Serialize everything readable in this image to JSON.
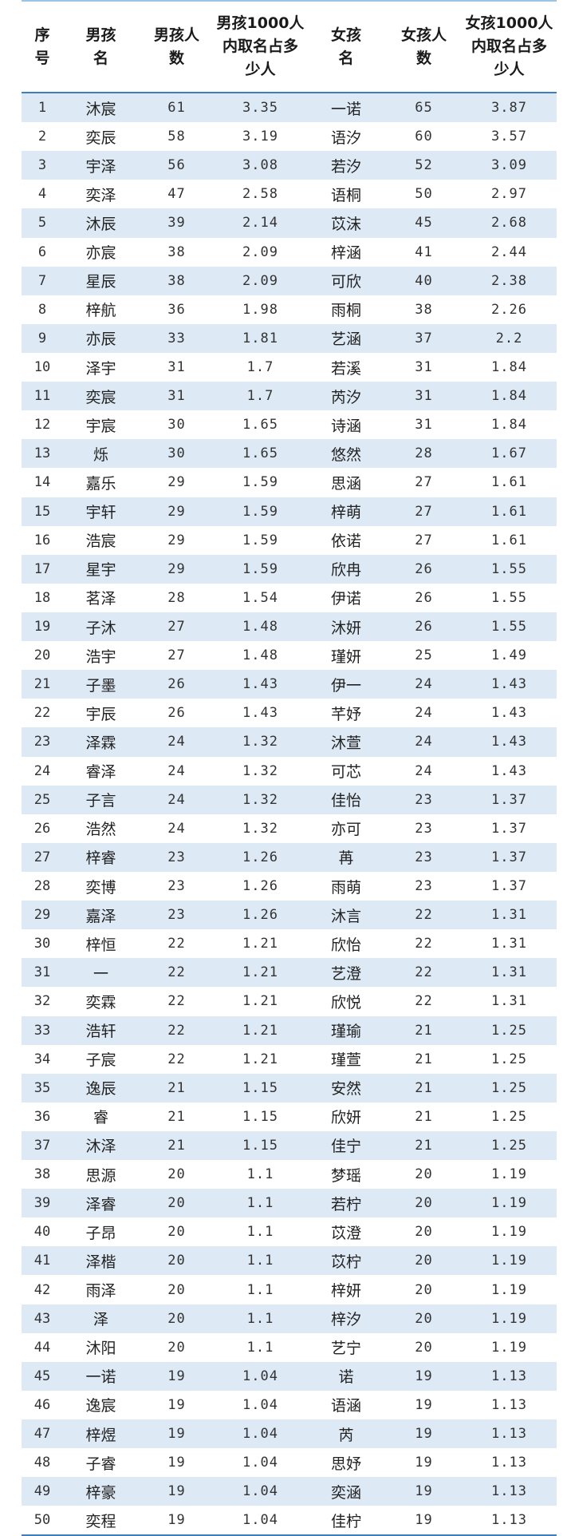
{
  "headers": [
    "序\n号",
    "男孩\n名",
    "男孩人\n数",
    "男孩1000人\n内取名占多\n少人",
    "女孩\n名",
    "女孩人\n数",
    "女孩1000人\n内取名占多\n少人"
  ],
  "rows": [
    [
      "1",
      "沐宸",
      "61",
      "3.35",
      "一诺",
      "65",
      "3.87"
    ],
    [
      "2",
      "奕辰",
      "58",
      "3.19",
      "语汐",
      "60",
      "3.57"
    ],
    [
      "3",
      "宇泽",
      "56",
      "3.08",
      "若汐",
      "52",
      "3.09"
    ],
    [
      "4",
      "奕泽",
      "47",
      "2.58",
      "语桐",
      "50",
      "2.97"
    ],
    [
      "5",
      "沐辰",
      "39",
      "2.14",
      "苡沫",
      "45",
      "2.68"
    ],
    [
      "6",
      "亦宸",
      "38",
      "2.09",
      "梓涵",
      "41",
      "2.44"
    ],
    [
      "7",
      "星辰",
      "38",
      "2.09",
      "可欣",
      "40",
      "2.38"
    ],
    [
      "8",
      "梓航",
      "36",
      "1.98",
      "雨桐",
      "38",
      "2.26"
    ],
    [
      "9",
      "亦辰",
      "33",
      "1.81",
      "艺涵",
      "37",
      "2.2"
    ],
    [
      "10",
      "泽宇",
      "31",
      "1.7",
      "若溪",
      "31",
      "1.84"
    ],
    [
      "11",
      "奕宸",
      "31",
      "1.7",
      "芮汐",
      "31",
      "1.84"
    ],
    [
      "12",
      "宇宸",
      "30",
      "1.65",
      "诗涵",
      "31",
      "1.84"
    ],
    [
      "13",
      "烁",
      "30",
      "1.65",
      "悠然",
      "28",
      "1.67"
    ],
    [
      "14",
      "嘉乐",
      "29",
      "1.59",
      "思涵",
      "27",
      "1.61"
    ],
    [
      "15",
      "宇轩",
      "29",
      "1.59",
      "梓萌",
      "27",
      "1.61"
    ],
    [
      "16",
      "浩宸",
      "29",
      "1.59",
      "依诺",
      "27",
      "1.61"
    ],
    [
      "17",
      "星宇",
      "29",
      "1.59",
      "欣冉",
      "26",
      "1.55"
    ],
    [
      "18",
      "茗泽",
      "28",
      "1.54",
      "伊诺",
      "26",
      "1.55"
    ],
    [
      "19",
      "子沐",
      "27",
      "1.48",
      "沐妍",
      "26",
      "1.55"
    ],
    [
      "20",
      "浩宇",
      "27",
      "1.48",
      "瑾妍",
      "25",
      "1.49"
    ],
    [
      "21",
      "子墨",
      "26",
      "1.43",
      "伊一",
      "24",
      "1.43"
    ],
    [
      "22",
      "宇辰",
      "26",
      "1.43",
      "芊妤",
      "24",
      "1.43"
    ],
    [
      "23",
      "泽霖",
      "24",
      "1.32",
      "沐萱",
      "24",
      "1.43"
    ],
    [
      "24",
      "睿泽",
      "24",
      "1.32",
      "可芯",
      "24",
      "1.43"
    ],
    [
      "25",
      "子言",
      "24",
      "1.32",
      "佳怡",
      "23",
      "1.37"
    ],
    [
      "26",
      "浩然",
      "24",
      "1.32",
      "亦可",
      "23",
      "1.37"
    ],
    [
      "27",
      "梓睿",
      "23",
      "1.26",
      "苒",
      "23",
      "1.37"
    ],
    [
      "28",
      "奕博",
      "23",
      "1.26",
      "雨萌",
      "23",
      "1.37"
    ],
    [
      "29",
      "嘉泽",
      "23",
      "1.26",
      "沐言",
      "22",
      "1.31"
    ],
    [
      "30",
      "梓恒",
      "22",
      "1.21",
      "欣怡",
      "22",
      "1.31"
    ],
    [
      "31",
      "一",
      "22",
      "1.21",
      "艺澄",
      "22",
      "1.31"
    ],
    [
      "32",
      "奕霖",
      "22",
      "1.21",
      "欣悦",
      "22",
      "1.31"
    ],
    [
      "33",
      "浩轩",
      "22",
      "1.21",
      "瑾瑜",
      "21",
      "1.25"
    ],
    [
      "34",
      "子宸",
      "22",
      "1.21",
      "瑾萱",
      "21",
      "1.25"
    ],
    [
      "35",
      "逸辰",
      "21",
      "1.15",
      "安然",
      "21",
      "1.25"
    ],
    [
      "36",
      "睿",
      "21",
      "1.15",
      "欣妍",
      "21",
      "1.25"
    ],
    [
      "37",
      "沐泽",
      "21",
      "1.15",
      "佳宁",
      "21",
      "1.25"
    ],
    [
      "38",
      "思源",
      "20",
      "1.1",
      "梦瑶",
      "20",
      "1.19"
    ],
    [
      "39",
      "泽睿",
      "20",
      "1.1",
      "若柠",
      "20",
      "1.19"
    ],
    [
      "40",
      "子昂",
      "20",
      "1.1",
      "苡澄",
      "20",
      "1.19"
    ],
    [
      "41",
      "泽楷",
      "20",
      "1.1",
      "苡柠",
      "20",
      "1.19"
    ],
    [
      "42",
      "雨泽",
      "20",
      "1.1",
      "梓妍",
      "20",
      "1.19"
    ],
    [
      "43",
      "泽",
      "20",
      "1.1",
      "梓汐",
      "20",
      "1.19"
    ],
    [
      "44",
      "沐阳",
      "20",
      "1.1",
      "艺宁",
      "20",
      "1.19"
    ],
    [
      "45",
      "一诺",
      "19",
      "1.04",
      "诺",
      "19",
      "1.13"
    ],
    [
      "46",
      "逸宸",
      "19",
      "1.04",
      "语涵",
      "19",
      "1.13"
    ],
    [
      "47",
      "梓煜",
      "19",
      "1.04",
      "芮",
      "19",
      "1.13"
    ],
    [
      "48",
      "子睿",
      "19",
      "1.04",
      "思妤",
      "19",
      "1.13"
    ],
    [
      "49",
      "梓豪",
      "19",
      "1.04",
      "奕涵",
      "19",
      "1.13"
    ],
    [
      "50",
      "奕程",
      "19",
      "1.04",
      "佳柠",
      "19",
      "1.13"
    ]
  ]
}
